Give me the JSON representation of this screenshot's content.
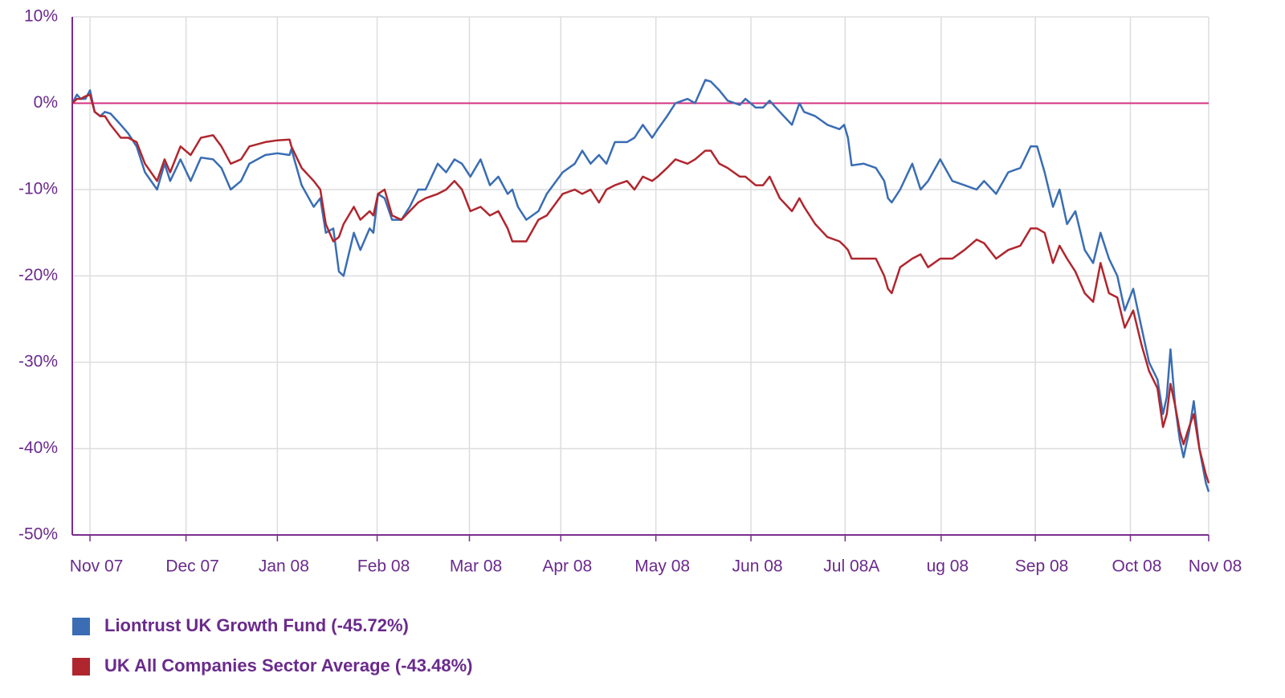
{
  "chart_data": {
    "type": "line",
    "x": [
      -0.19,
      -0.14,
      -0.1,
      -0.05,
      0,
      0.05,
      0.11,
      0.16,
      0.22,
      0.33,
      0.41,
      0.5,
      0.59,
      0.72,
      0.8,
      0.86,
      0.97,
      1.08,
      1.19,
      1.32,
      1.41,
      1.51,
      1.62,
      1.71,
      1.88,
      2.01,
      2.14,
      2.16,
      2.27,
      2.4,
      2.47,
      2.53,
      2.61,
      2.67,
      2.72,
      2.83,
      2.9,
      3.0,
      3.04,
      3.09,
      3.16,
      3.24,
      3.34,
      3.43,
      3.52,
      3.6,
      3.73,
      3.82,
      3.91,
      3.99,
      4.08,
      4.19,
      4.29,
      4.38,
      4.48,
      4.53,
      4.59,
      4.68,
      4.81,
      4.9,
      5.07,
      5.2,
      5.28,
      5.37,
      5.46,
      5.54,
      5.63,
      5.76,
      5.84,
      5.93,
      6.03,
      6.09,
      6.19,
      6.28,
      6.41,
      6.49,
      6.6,
      6.66,
      6.75,
      6.84,
      6.97,
      7.03,
      7.14,
      7.22,
      7.29,
      7.4,
      7.53,
      7.61,
      7.66,
      7.78,
      7.91,
      8.04,
      8.09,
      8.13,
      8.17,
      8.3,
      8.43,
      8.52,
      8.56,
      8.6,
      8.69,
      8.82,
      8.91,
      8.99,
      9.12,
      9.25,
      9.38,
      9.51,
      9.59,
      9.72,
      9.85,
      9.98,
      10.09,
      10.16,
      10.24,
      10.33,
      10.4,
      10.48,
      10.57,
      10.67,
      10.76,
      10.84,
      10.93,
      11.02,
      11.1,
      11.19,
      11.28,
      11.36,
      11.45,
      11.51,
      11.55,
      11.59,
      11.64,
      11.69,
      11.73,
      11.79,
      11.84,
      11.9,
      11.97,
      12
    ],
    "series": [
      {
        "name": "Liontrust UK Growth Fund (-45.72%)",
        "color": "#3a6db3",
        "values": [
          0,
          1,
          0.5,
          0.5,
          1.5,
          -1,
          -1.5,
          -1,
          -1.2,
          -2.5,
          -3.5,
          -5,
          -8,
          -10,
          -7,
          -9,
          -6.5,
          -9,
          -6.3,
          -6.5,
          -7.5,
          -10,
          -9,
          -7,
          -6,
          -5.8,
          -6,
          -5.3,
          -9.5,
          -12,
          -11,
          -15,
          -14.5,
          -19.5,
          -20,
          -15,
          -17,
          -14.5,
          -15,
          -10.5,
          -11,
          -13.5,
          -13.5,
          -12,
          -10,
          -10,
          -7,
          -8,
          -6.5,
          -7,
          -8.5,
          -6.5,
          -9.5,
          -8.5,
          -10.5,
          -10,
          -12,
          -13.5,
          -12.5,
          -10.5,
          -8,
          -7,
          -5.5,
          -7,
          -6,
          -7,
          -4.5,
          -4.5,
          -4,
          -2.5,
          -4,
          -3,
          -1.5,
          0,
          0.5,
          0,
          2.7,
          2.5,
          1.5,
          0.3,
          -0.2,
          0.5,
          -0.5,
          -0.5,
          0.3,
          -1,
          -2.5,
          0,
          -1,
          -1.5,
          -2.5,
          -3,
          -2.5,
          -4,
          -7.2,
          -7,
          -7.5,
          -9,
          -11,
          -11.5,
          -10,
          -7,
          -10,
          -9,
          -6.5,
          -9,
          -9.5,
          -10,
          -9,
          -10.5,
          -8,
          -7.5,
          -5,
          -5,
          -8,
          -12,
          -10,
          -14,
          -12.5,
          -17,
          -18.5,
          -15,
          -18,
          -20,
          -24,
          -21.5,
          -26,
          -30,
          -32,
          -36,
          -34,
          -28.5,
          -35,
          -39,
          -41,
          -38,
          -34.5,
          -40,
          -44,
          -45
        ]
      },
      {
        "name": "UK All Companies Sector Average (-43.48%)",
        "color": "#b0262e",
        "values": [
          0,
          0.5,
          0.5,
          0.8,
          1,
          -1,
          -1.5,
          -1.5,
          -2.5,
          -4,
          -4,
          -4.5,
          -7,
          -9,
          -6.5,
          -8,
          -5,
          -6,
          -4,
          -3.7,
          -5,
          -7,
          -6.5,
          -5,
          -4.5,
          -4.3,
          -4.2,
          -5,
          -7.5,
          -9,
          -10,
          -14,
          -16,
          -15.5,
          -14,
          -12,
          -13.5,
          -12.5,
          -13,
          -10.5,
          -10,
          -13,
          -13.5,
          -12.5,
          -11.5,
          -11,
          -10.5,
          -10,
          -9,
          -10,
          -12.5,
          -12,
          -13,
          -12.5,
          -14.5,
          -16,
          -16,
          -16,
          -13.5,
          -13,
          -10.5,
          -10,
          -10.5,
          -10,
          -11.5,
          -10,
          -9.5,
          -9,
          -10,
          -8.5,
          -9,
          -8.5,
          -7.5,
          -6.5,
          -7,
          -6.5,
          -5.5,
          -5.5,
          -7,
          -7.5,
          -8.5,
          -8.5,
          -9.5,
          -9.5,
          -8.5,
          -11,
          -12.5,
          -11,
          -12,
          -14,
          -15.5,
          -16,
          -16.5,
          -17,
          -18,
          -18,
          -18,
          -20,
          -21.5,
          -22,
          -19,
          -18,
          -17.5,
          -19,
          -18,
          -18,
          -17,
          -15.8,
          -16.2,
          -18,
          -17,
          -16.5,
          -14.5,
          -14.5,
          -15,
          -18.5,
          -16.5,
          -18,
          -19.5,
          -22,
          -23,
          -18.5,
          -22,
          -22.5,
          -26,
          -24,
          -28,
          -31,
          -33,
          -37.5,
          -36,
          -32.5,
          -35,
          -38,
          -39.5,
          -37.5,
          -36,
          -40,
          -43,
          -44
        ]
      }
    ],
    "xlim": [
      -0.19,
      12
    ],
    "xticks": [
      {
        "value": 0,
        "label": "Nov 07"
      },
      {
        "value": 1.03,
        "label": "Dec 07"
      },
      {
        "value": 2.01,
        "label": "Jan 08"
      },
      {
        "value": 3.08,
        "label": "Feb 08"
      },
      {
        "value": 4.07,
        "label": "Mar 08"
      },
      {
        "value": 5.05,
        "label": "Apr 08"
      },
      {
        "value": 6.07,
        "label": "May 08"
      },
      {
        "value": 7.09,
        "label": "Jun 08"
      },
      {
        "value": 8.1,
        "label": "Jul 08A"
      },
      {
        "value": 9.13,
        "label": "ug 08"
      },
      {
        "value": 10.14,
        "label": "Sep 08"
      },
      {
        "value": 11.16,
        "label": "Oct 08"
      },
      {
        "value": 12,
        "label": "Nov 08"
      }
    ],
    "ylim": [
      -50,
      10
    ],
    "yticks": [
      {
        "value": -50,
        "label": "-50%"
      },
      {
        "value": -40,
        "label": "-40%"
      },
      {
        "value": -30,
        "label": "-30%"
      },
      {
        "value": -20,
        "label": "-20%"
      },
      {
        "value": -10,
        "label": "-10%"
      },
      {
        "value": 0,
        "label": "0%"
      },
      {
        "value": 10,
        "label": "10%"
      }
    ],
    "grid": true,
    "grid_color": "#dddddd",
    "axis_color": "#7b2d8e",
    "zero_line_color": "#d6307f",
    "legend": "bottom"
  }
}
